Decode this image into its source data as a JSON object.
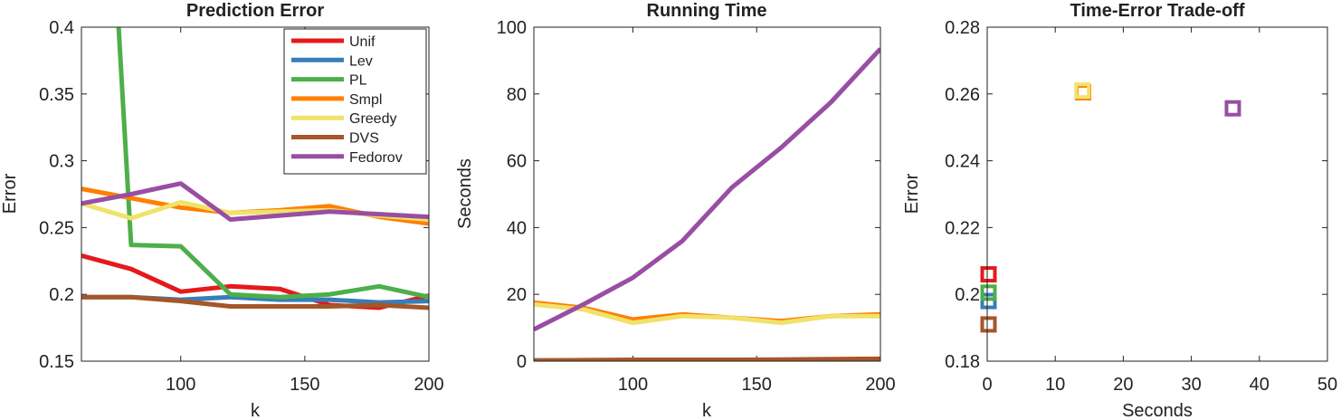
{
  "colors": {
    "Unif": "#e41a1c",
    "Lev": "#377eb8",
    "PL": "#4daf4a",
    "Smpl": "#ff7f00",
    "Greedy": "#f0e26a",
    "DVS": "#a65628",
    "Fedorov": "#984ea3"
  },
  "chart_data": [
    {
      "type": "line",
      "title": "Prediction Error",
      "xlabel": "k",
      "ylabel": "Error",
      "xlim": [
        60,
        200
      ],
      "ylim": [
        0.15,
        0.4
      ],
      "xticks": [
        100,
        150,
        200
      ],
      "yticks": [
        0.15,
        0.2,
        0.25,
        0.3,
        0.35,
        0.4
      ],
      "ytick_labels": [
        "0.15",
        "0.2",
        "0.25",
        "0.3",
        "0.35",
        "0.4"
      ],
      "legend": "top-right",
      "x": [
        60,
        80,
        100,
        120,
        140,
        160,
        180,
        200
      ],
      "series": [
        {
          "name": "Unif",
          "values": [
            0.229,
            0.219,
            0.202,
            0.206,
            0.204,
            0.192,
            0.19,
            0.199
          ]
        },
        {
          "name": "Lev",
          "values": [
            0.198,
            0.198,
            0.196,
            0.198,
            0.196,
            0.196,
            0.194,
            0.195
          ]
        },
        {
          "name": "PL",
          "points": [
            [
              75,
              0.4
            ],
            [
              80,
              0.237
            ],
            [
              100,
              0.236
            ],
            [
              120,
              0.2
            ],
            [
              140,
              0.198
            ],
            [
              160,
              0.2
            ],
            [
              180,
              0.206
            ],
            [
              200,
              0.198
            ]
          ]
        },
        {
          "name": "Smpl",
          "values": [
            0.279,
            0.272,
            0.265,
            0.261,
            0.263,
            0.266,
            0.258,
            0.253
          ]
        },
        {
          "name": "Greedy",
          "values": [
            0.268,
            0.257,
            0.269,
            0.261,
            0.262,
            0.263,
            0.259,
            0.256
          ]
        },
        {
          "name": "DVS",
          "values": [
            0.198,
            0.198,
            0.195,
            0.191,
            0.191,
            0.191,
            0.192,
            0.19
          ]
        },
        {
          "name": "Fedorov",
          "values": [
            0.268,
            0.275,
            0.283,
            0.256,
            0.259,
            0.262,
            0.26,
            0.258
          ]
        }
      ]
    },
    {
      "type": "line",
      "title": "Running Time",
      "xlabel": "k",
      "ylabel": "Seconds",
      "xlim": [
        60,
        200
      ],
      "ylim": [
        0,
        100
      ],
      "xticks": [
        100,
        150,
        200
      ],
      "yticks": [
        0,
        20,
        40,
        60,
        80,
        100
      ],
      "x": [
        60,
        80,
        100,
        120,
        140,
        160,
        180,
        200
      ],
      "series": [
        {
          "name": "Unif",
          "values": [
            0.1,
            0.1,
            0.1,
            0.1,
            0.1,
            0.1,
            0.1,
            0.1
          ]
        },
        {
          "name": "Lev",
          "values": [
            0.2,
            0.2,
            0.2,
            0.2,
            0.2,
            0.2,
            0.2,
            0.2
          ]
        },
        {
          "name": "PL",
          "values": [
            0.1,
            0.1,
            0.1,
            0.1,
            0.1,
            0.1,
            0.1,
            0.1
          ]
        },
        {
          "name": "Smpl",
          "values": [
            17.5,
            16.0,
            12.5,
            14.0,
            13.0,
            12.0,
            13.5,
            14.0
          ]
        },
        {
          "name": "Greedy",
          "values": [
            17.0,
            15.5,
            11.5,
            13.5,
            13.0,
            11.5,
            13.5,
            13.5
          ]
        },
        {
          "name": "DVS",
          "values": [
            0.2,
            0.3,
            0.4,
            0.4,
            0.4,
            0.5,
            0.6,
            0.7
          ]
        },
        {
          "name": "Fedorov",
          "values": [
            9.5,
            17.0,
            25.0,
            36.0,
            52.0,
            64.0,
            77.5,
            93.5
          ]
        }
      ]
    },
    {
      "type": "scatter",
      "title": "Time-Error Trade-off",
      "xlabel": "Seconds",
      "ylabel": "Error",
      "xlim": [
        0,
        50
      ],
      "ylim": [
        0.18,
        0.28
      ],
      "xticks": [
        0,
        10,
        20,
        30,
        40,
        50
      ],
      "yticks": [
        0.18,
        0.2,
        0.22,
        0.24,
        0.26,
        0.28
      ],
      "ytick_labels": [
        "0.18",
        "0.2",
        "0.22",
        "0.24",
        "0.26",
        "0.28"
      ],
      "marker": "square",
      "points": [
        {
          "name": "Unif",
          "x": 0.2,
          "y": 0.206
        },
        {
          "name": "Lev",
          "x": 0.2,
          "y": 0.198
        },
        {
          "name": "PL",
          "x": 0.2,
          "y": 0.2005
        },
        {
          "name": "DVS",
          "x": 0.2,
          "y": 0.191
        },
        {
          "name": "Smpl",
          "x": 14.1,
          "y": 0.2605
        },
        {
          "name": "Greedy",
          "x": 14.0,
          "y": 0.261
        },
        {
          "name": "Fedorov",
          "x": 36.1,
          "y": 0.2557
        }
      ]
    }
  ]
}
